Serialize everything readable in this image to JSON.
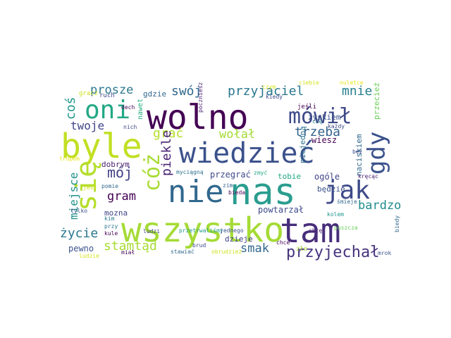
{
  "palette": {
    "dark_purple": "#440154",
    "indigo": "#3b518b",
    "blue": "#2c728e",
    "teal": "#21918c",
    "green": "#28ae80",
    "light_green": "#5ec962",
    "yellow_green": "#addc30",
    "yellow": "#fde725"
  },
  "words": [
    {
      "text": "wolno",
      "color": "#440154"
    },
    {
      "text": "byle",
      "color": "#c2df23"
    },
    {
      "text": "wiedzieć",
      "color": "#3b518b"
    },
    {
      "text": "nie",
      "color": "#31688e"
    },
    {
      "text": "nas",
      "color": "#2a9d8f"
    },
    {
      "text": "wszystko",
      "color": "#a5db36"
    },
    {
      "text": "tam",
      "color": "#472d7b"
    },
    {
      "text": "się",
      "color": "#b5de2b"
    },
    {
      "text": "oni",
      "color": "#22a884"
    },
    {
      "text": "mówił",
      "color": "#3e4a89"
    },
    {
      "text": "gdy",
      "color": "#3b528b"
    },
    {
      "text": "jak",
      "color": "#3e4a89"
    },
    {
      "text": "cóż",
      "color": "#a8db34"
    },
    {
      "text": "przyjechał",
      "color": "#46337e"
    },
    {
      "text": "prosze",
      "color": "#2a788e"
    },
    {
      "text": "swój",
      "color": "#31688e"
    },
    {
      "text": "przyjaciel",
      "color": "#2a788e"
    },
    {
      "text": "mnie",
      "color": "#277f8e"
    },
    {
      "text": "coś",
      "color": "#1f988b"
    },
    {
      "text": "twoje",
      "color": "#404387"
    },
    {
      "text": "grać",
      "color": "#b5de2b"
    },
    {
      "text": "wołał",
      "color": "#a5db36"
    },
    {
      "text": "trzeba",
      "color": "#33638d"
    },
    {
      "text": "piekle",
      "color": "#482173"
    },
    {
      "text": "mój",
      "color": "#424086"
    },
    {
      "text": "gram",
      "color": "#440154"
    },
    {
      "text": "bardzo",
      "color": "#228c8d"
    },
    {
      "text": "miejsce",
      "color": "#21918c"
    },
    {
      "text": "życie",
      "color": "#2a788e"
    },
    {
      "text": "stamtąd",
      "color": "#a8db34"
    },
    {
      "text": "smak",
      "color": "#31688e"
    },
    {
      "text": "mozna",
      "color": "#414487"
    },
    {
      "text": "pewno",
      "color": "#3b528b"
    },
    {
      "text": "dobrym",
      "color": "#481f70"
    },
    {
      "text": "zyskiem",
      "color": "#3b528b"
    },
    {
      "text": "wiesz",
      "color": "#440154"
    },
    {
      "text": "niejedną",
      "color": "#2c718e"
    },
    {
      "text": "gdzie",
      "color": "#31688e"
    },
    {
      "text": "nawet",
      "color": "#29af7f"
    },
    {
      "text": "ogóle",
      "color": "#404387"
    },
    {
      "text": "będzie",
      "color": "#3b528b"
    },
    {
      "text": "tobie",
      "color": "#22a884"
    },
    {
      "text": "przegrać",
      "color": "#3e4989"
    },
    {
      "text": "powtarzał",
      "color": "#3e4a89"
    },
    {
      "text": "dzieje",
      "color": "#424086"
    },
    {
      "text": "naciskiem",
      "color": "#31688e"
    },
    {
      "text": "przecież",
      "color": "#6ccd5a"
    },
    {
      "text": "gracz",
      "color": "#cfe11c"
    },
    {
      "text": "ruch",
      "color": "#3e4a89"
    },
    {
      "text": "dech",
      "color": "#440154"
    },
    {
      "text": "nich",
      "color": "#3e4a89"
    },
    {
      "text": "czym",
      "color": "#dde318"
    },
    {
      "text": "kiedy",
      "color": "#3e4a89"
    },
    {
      "text": "poczniesz",
      "color": "#482173"
    },
    {
      "text": "jeśli",
      "color": "#440154"
    },
    {
      "text": "ciebie",
      "color": "#d2e21b"
    },
    {
      "text": "nuletce",
      "color": "#eae51a"
    },
    {
      "text": "cię",
      "color": "#2a788e"
    },
    {
      "text": "każdy",
      "color": "#3e4a89"
    },
    {
      "text": "bez",
      "color": "#3e4a89"
    },
    {
      "text": "trupem",
      "color": "#eae51a"
    },
    {
      "text": "myciągną",
      "color": "#2c718e"
    },
    {
      "text": "zmyć",
      "color": "#22a884"
    },
    {
      "text": "jest",
      "color": "#cfe11c"
    },
    {
      "text": "pomie",
      "color": "#31688e"
    },
    {
      "text": "zim",
      "color": "#33638d"
    },
    {
      "text": "bieda",
      "color": "#440154"
    },
    {
      "text": "kręcąc",
      "color": "#482173"
    },
    {
      "text": "śmieje",
      "color": "#31688e"
    },
    {
      "text": "tylko",
      "color": "#3b528b"
    },
    {
      "text": "kim",
      "color": "#2a788e"
    },
    {
      "text": "przy",
      "color": "#2a788e"
    },
    {
      "text": "kule",
      "color": "#440154"
    },
    {
      "text": "ludzi",
      "color": "#404387"
    },
    {
      "text": "przetrwaliśmy",
      "color": "#1f988b"
    },
    {
      "text": "jednego",
      "color": "#3b528b"
    },
    {
      "text": "puszcza",
      "color": "#6ccd5a"
    },
    {
      "text": "biedy",
      "color": "#31688e"
    },
    {
      "text": "kolem",
      "color": "#1f988b"
    },
    {
      "text": "chcę",
      "color": "#481f70"
    },
    {
      "text": "chce",
      "color": "#440154"
    },
    {
      "text": "ludzie",
      "color": "#d2e21b"
    },
    {
      "text": "miał",
      "color": "#440154"
    },
    {
      "text": "brud",
      "color": "#3e4a89"
    },
    {
      "text": "stawiać",
      "color": "#31688e"
    },
    {
      "text": "obrudzież",
      "color": "#cfe11c"
    },
    {
      "text": "złe",
      "color": "#a8db34"
    },
    {
      "text": "mrok",
      "color": "#3b528b"
    }
  ]
}
